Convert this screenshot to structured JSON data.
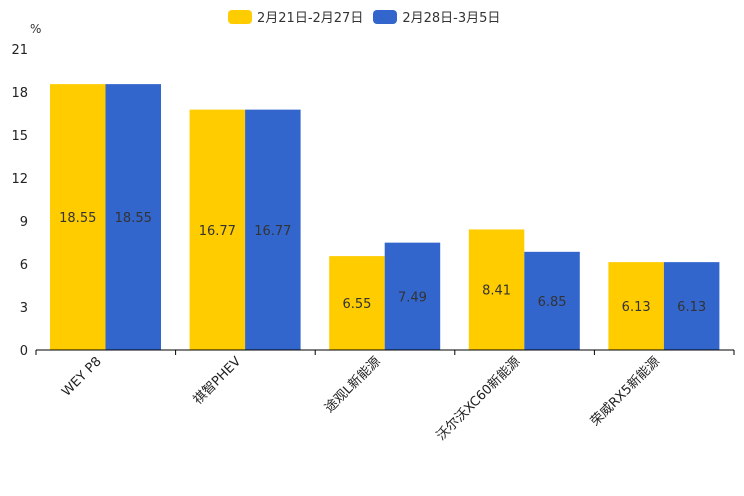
{
  "chart_data": {
    "type": "bar",
    "title": "",
    "ylabel": "%",
    "xlabel": "",
    "ylim": [
      0,
      21
    ],
    "yticks": [
      0,
      3,
      6,
      9,
      12,
      15,
      18,
      21
    ],
    "categories": [
      "WEY P8",
      "祺智PHEV",
      "途观L新能源",
      "沃尔沃XC60新能源",
      "荣威RX5新能源"
    ],
    "series": [
      {
        "name": "2月21日-2月27日",
        "color": "#ffcc00",
        "values": [
          18.55,
          16.77,
          6.55,
          8.41,
          6.13
        ]
      },
      {
        "name": "2月28日-3月5日",
        "color": "#3366cc",
        "values": [
          18.55,
          16.77,
          7.49,
          6.85,
          6.13
        ]
      }
    ],
    "legend_position": "top",
    "grid": false
  }
}
